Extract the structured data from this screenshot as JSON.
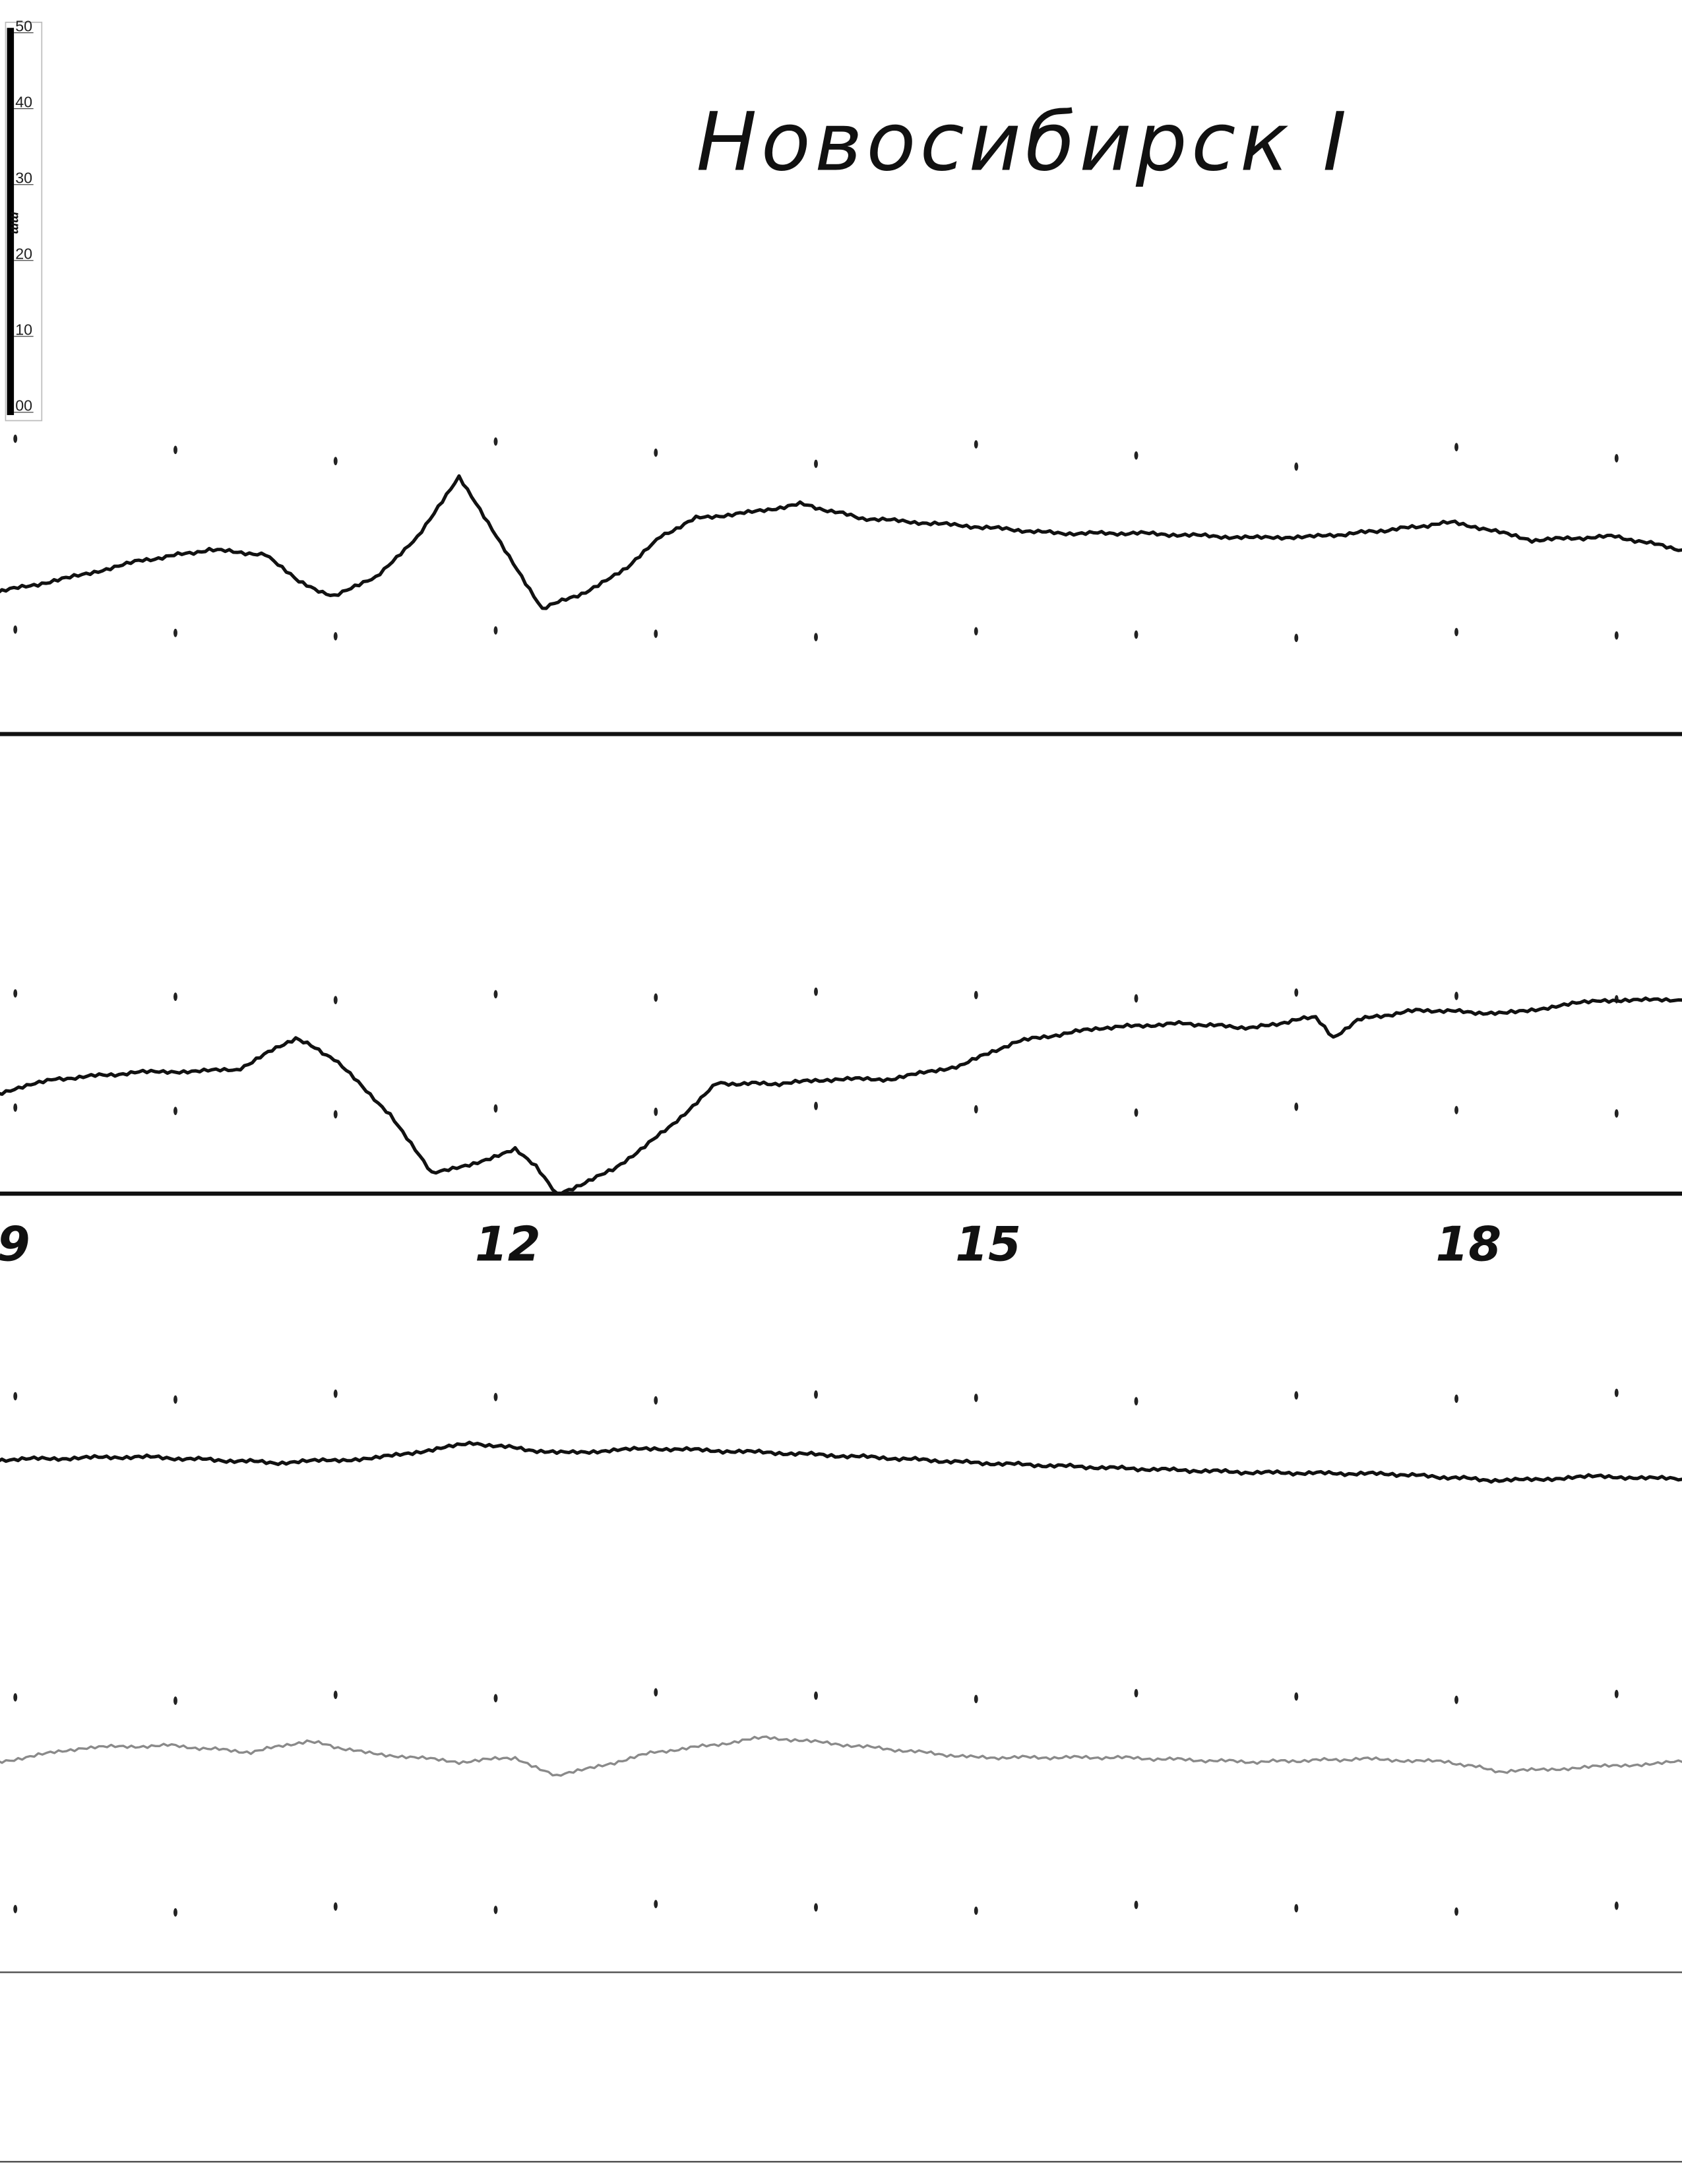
{
  "chart_data": {
    "type": "line",
    "title": "Новосибирск I",
    "x_tick_labels": [
      "9",
      "12",
      "15",
      "18"
    ],
    "x_ticks": [
      9,
      12,
      15,
      18
    ],
    "xlim": [
      8.9,
      19.42
    ],
    "hour_marks": [
      9,
      10,
      11,
      12,
      13,
      14,
      15,
      16,
      17,
      18,
      19
    ],
    "scale_bar": {
      "unit": "mm",
      "labels": [
        "00",
        "10",
        "20",
        "30",
        "40",
        "50"
      ]
    },
    "series": [
      {
        "color": "#111111",
        "points": [
          [
            8.9,
            0
          ],
          [
            9.35,
            1.9
          ],
          [
            9.78,
            4.1
          ],
          [
            10.22,
            5.6
          ],
          [
            10.57,
            5.0
          ],
          [
            10.78,
            1.3
          ],
          [
            11.0,
            -0.6
          ],
          [
            11.26,
            1.9
          ],
          [
            11.52,
            7.4
          ],
          [
            11.78,
            15.2
          ],
          [
            12.04,
            6.5
          ],
          [
            12.3,
            -2.2
          ],
          [
            12.57,
            0
          ],
          [
            12.83,
            3.1
          ],
          [
            13.04,
            7.4
          ],
          [
            13.26,
            9.8
          ],
          [
            13.61,
            10.6
          ],
          [
            13.91,
            11.7
          ],
          [
            14.3,
            9.8
          ],
          [
            15.0,
            8.7
          ],
          [
            15.52,
            7.8
          ],
          [
            16.04,
            7.8
          ],
          [
            16.74,
            7.2
          ],
          [
            17.17,
            7.4
          ],
          [
            17.61,
            8.3
          ],
          [
            18.0,
            9.3
          ],
          [
            18.48,
            6.9
          ],
          [
            19.0,
            7.4
          ],
          [
            19.42,
            5.6
          ]
        ]
      },
      {
        "color": "#111111",
        "points": [
          [
            8.9,
            0
          ],
          [
            9.26,
            1.9
          ],
          [
            9.78,
            2.8
          ],
          [
            10.39,
            3.1
          ],
          [
            10.76,
            7.4
          ],
          [
            11.0,
            4.6
          ],
          [
            11.35,
            -2.8
          ],
          [
            11.61,
            -10.7
          ],
          [
            11.87,
            -9.3
          ],
          [
            12.13,
            -7.4
          ],
          [
            12.26,
            -9.8
          ],
          [
            12.39,
            -13.5
          ],
          [
            12.74,
            -10.2
          ],
          [
            13.09,
            -4.6
          ],
          [
            13.39,
            1.3
          ],
          [
            13.78,
            1.3
          ],
          [
            14.13,
            1.9
          ],
          [
            14.48,
            1.9
          ],
          [
            14.91,
            3.7
          ],
          [
            15.26,
            6.9
          ],
          [
            15.78,
            8.7
          ],
          [
            16.3,
            9.3
          ],
          [
            16.74,
            8.7
          ],
          [
            17.13,
            10.2
          ],
          [
            17.24,
            7.4
          ],
          [
            17.39,
            9.8
          ],
          [
            17.78,
            11.1
          ],
          [
            18.3,
            10.6
          ],
          [
            18.91,
            12.4
          ],
          [
            19.42,
            12.4
          ]
        ]
      },
      {
        "color": "#111111",
        "points": [
          [
            8.9,
            0
          ],
          [
            9.78,
            0.4
          ],
          [
            10.65,
            -0.4
          ],
          [
            11.26,
            0.2
          ],
          [
            11.87,
            2.2
          ],
          [
            12.39,
            0.9
          ],
          [
            13.0,
            1.5
          ],
          [
            13.78,
            0.9
          ],
          [
            14.48,
            0.2
          ],
          [
            15.0,
            -0.4
          ],
          [
            15.87,
            -1.1
          ],
          [
            16.74,
            -1.7
          ],
          [
            17.61,
            -1.9
          ],
          [
            18.3,
            -2.8
          ],
          [
            18.91,
            -2.2
          ],
          [
            19.42,
            -2.6
          ]
        ]
      },
      {
        "color": "#8a8a8a",
        "points": [
          [
            8.9,
            0
          ],
          [
            9.43,
            1.9
          ],
          [
            9.96,
            2.2
          ],
          [
            10.48,
            1.3
          ],
          [
            10.83,
            2.8
          ],
          [
            11.17,
            1.3
          ],
          [
            11.78,
            0
          ],
          [
            12.13,
            0.6
          ],
          [
            12.39,
            -1.9
          ],
          [
            12.65,
            -0.6
          ],
          [
            13.0,
            1.3
          ],
          [
            13.35,
            2.2
          ],
          [
            13.7,
            3.3
          ],
          [
            14.13,
            2.4
          ],
          [
            15.0,
            0.6
          ],
          [
            15.87,
            0.6
          ],
          [
            16.74,
            0
          ],
          [
            17.43,
            0.4
          ],
          [
            17.96,
            0
          ],
          [
            18.3,
            -1.3
          ],
          [
            18.91,
            -0.6
          ],
          [
            19.42,
            0
          ]
        ]
      }
    ]
  }
}
